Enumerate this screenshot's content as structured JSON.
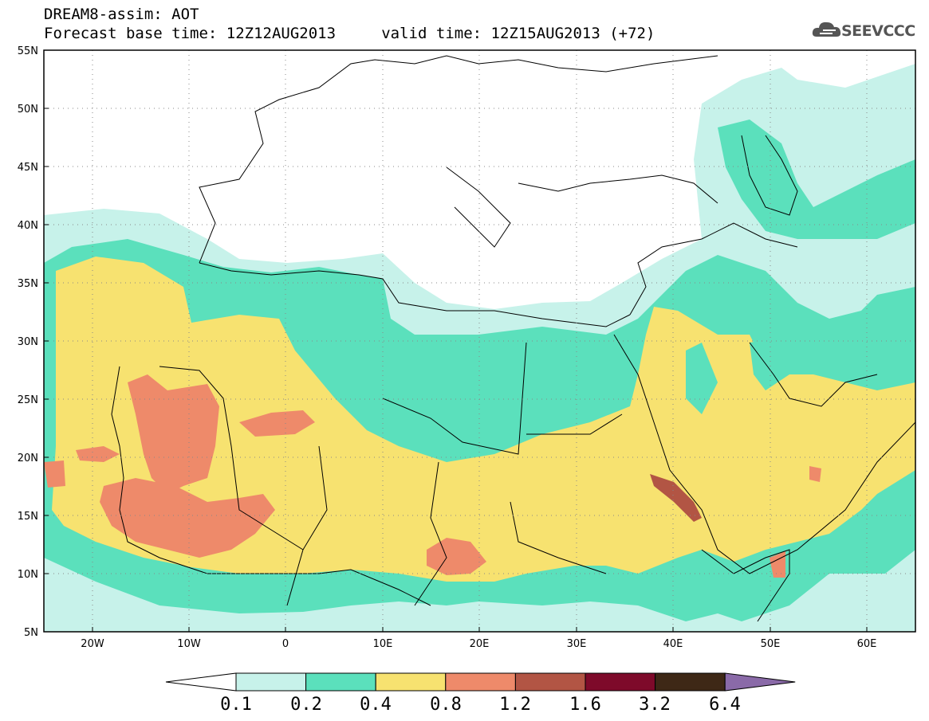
{
  "title": {
    "line1": "DREAM8-assim: AOT",
    "line2": "Forecast base time: 12Z12AUG2013     valid time: 12Z15AUG2013 (+72)"
  },
  "logo": {
    "text": "SEEVCCC",
    "icon": "cloud-icon",
    "color": "#555555"
  },
  "map": {
    "lat_labels": [
      "55N",
      "50N",
      "45N",
      "40N",
      "35N",
      "30N",
      "25N",
      "20N",
      "15N",
      "10N",
      "5N"
    ],
    "lon_labels": [
      "20W",
      "10W",
      "0",
      "10E",
      "20E",
      "30E",
      "40E",
      "50E",
      "60E"
    ],
    "lat_range": [
      5,
      55
    ],
    "lon_range": [
      -25,
      65
    ],
    "grid": "dotted"
  },
  "colorbar": {
    "levels": [
      "0.1",
      "0.2",
      "0.4",
      "0.8",
      "1.2",
      "1.6",
      "3.2",
      "6.4"
    ],
    "colors": [
      "#ffffff",
      "#c7f2ea",
      "#5be0bc",
      "#f7e270",
      "#ee8a6a",
      "#b25544",
      "#7e0a2a",
      "#3e2816",
      "#8a6aa8"
    ]
  }
}
